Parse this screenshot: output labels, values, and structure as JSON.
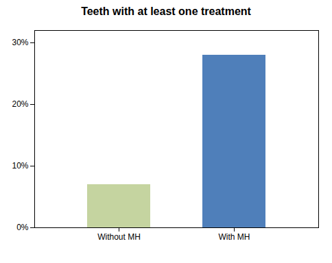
{
  "chart_data": {
    "type": "bar",
    "title": "Teeth with at least one treatment",
    "categories": [
      "Without MH",
      "With MH"
    ],
    "values": [
      0.07,
      0.28
    ],
    "colors": [
      "#c5d4a0",
      "#4f7fba"
    ],
    "ylim": [
      0,
      0.32
    ],
    "yticks": [
      {
        "value": 0.0,
        "label": "0%"
      },
      {
        "value": 0.1,
        "label": "10%"
      },
      {
        "value": 0.2,
        "label": "20%"
      },
      {
        "value": 0.3,
        "label": "30%"
      }
    ],
    "grid": false
  }
}
